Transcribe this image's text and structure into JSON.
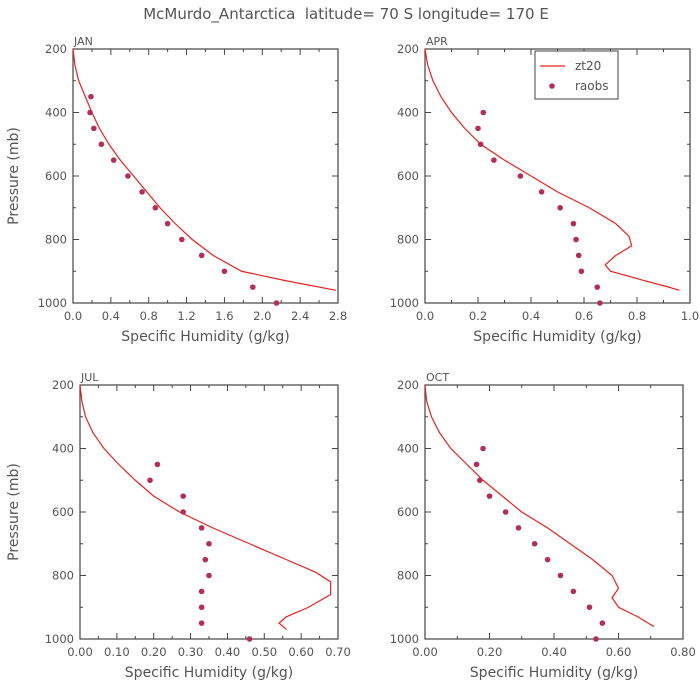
{
  "page": {
    "title": "McMurdo_Antarctica  latitude= 70 S longitude= 170 E"
  },
  "colors": {
    "model_line": "#e8231f",
    "obs_points": "#b0305a",
    "axis": "#444444",
    "text": "#555555"
  },
  "legend": {
    "placement": "top-right of APR panel",
    "entries": [
      "zt20",
      "raobs"
    ]
  },
  "chart_data": [
    {
      "type": "line",
      "panel": "JAN",
      "xlabel": "Specific Humidity (g/kg)",
      "ylabel": "Pressure (mb)",
      "xlim": [
        0,
        2.8
      ],
      "ylim": [
        1000,
        200
      ],
      "xticks": [
        "0.0",
        "0.4",
        "0.8",
        "1.2",
        "1.6",
        "2.0",
        "2.4",
        "2.8"
      ],
      "yticks": [
        "200",
        "400",
        "600",
        "800",
        "1000"
      ],
      "series": [
        {
          "name": "zt20",
          "kind": "line",
          "points": [
            [
              0.0,
              200
            ],
            [
              0.02,
              250
            ],
            [
              0.06,
              300
            ],
            [
              0.13,
              350
            ],
            [
              0.2,
              400
            ],
            [
              0.28,
              450
            ],
            [
              0.38,
              500
            ],
            [
              0.5,
              550
            ],
            [
              0.64,
              600
            ],
            [
              0.78,
              650
            ],
            [
              0.92,
              700
            ],
            [
              1.08,
              750
            ],
            [
              1.26,
              800
            ],
            [
              1.48,
              850
            ],
            [
              1.78,
              900
            ],
            [
              2.25,
              930
            ],
            [
              2.78,
              960
            ]
          ]
        },
        {
          "name": "raobs",
          "kind": "scatter",
          "points": [
            [
              0.19,
              350
            ],
            [
              0.18,
              400
            ],
            [
              0.22,
              450
            ],
            [
              0.3,
              500
            ],
            [
              0.43,
              550
            ],
            [
              0.58,
              600
            ],
            [
              0.73,
              650
            ],
            [
              0.87,
              700
            ],
            [
              1.0,
              750
            ],
            [
              1.15,
              800
            ],
            [
              1.36,
              850
            ],
            [
              1.6,
              900
            ],
            [
              1.9,
              950
            ],
            [
              2.15,
              1000
            ]
          ]
        }
      ]
    },
    {
      "type": "line",
      "panel": "APR",
      "xlabel": "Specific Humidity (g/kg)",
      "ylabel": "",
      "xlim": [
        0,
        1.0
      ],
      "ylim": [
        1000,
        200
      ],
      "xticks": [
        "0.0",
        "0.2",
        "0.4",
        "0.6",
        "0.8",
        "1.0"
      ],
      "yticks": [
        "200",
        "400",
        "600",
        "800",
        "1000"
      ],
      "series": [
        {
          "name": "zt20",
          "kind": "line",
          "points": [
            [
              0.0,
              200
            ],
            [
              0.01,
              250
            ],
            [
              0.03,
              300
            ],
            [
              0.06,
              350
            ],
            [
              0.1,
              400
            ],
            [
              0.15,
              450
            ],
            [
              0.21,
              500
            ],
            [
              0.3,
              550
            ],
            [
              0.4,
              600
            ],
            [
              0.5,
              650
            ],
            [
              0.62,
              700
            ],
            [
              0.72,
              750
            ],
            [
              0.77,
              790
            ],
            [
              0.78,
              820
            ],
            [
              0.72,
              850
            ],
            [
              0.68,
              880
            ],
            [
              0.7,
              900
            ],
            [
              0.83,
              930
            ],
            [
              0.92,
              950
            ],
            [
              0.96,
              960
            ]
          ]
        },
        {
          "name": "raobs",
          "kind": "scatter",
          "points": [
            [
              0.22,
              400
            ],
            [
              0.2,
              450
            ],
            [
              0.21,
              500
            ],
            [
              0.26,
              550
            ],
            [
              0.36,
              600
            ],
            [
              0.44,
              650
            ],
            [
              0.51,
              700
            ],
            [
              0.56,
              750
            ],
            [
              0.57,
              800
            ],
            [
              0.58,
              850
            ],
            [
              0.59,
              900
            ],
            [
              0.65,
              950
            ],
            [
              0.66,
              1000
            ]
          ]
        }
      ]
    },
    {
      "type": "line",
      "panel": "JUL",
      "xlabel": "Specific Humidity (g/kg)",
      "ylabel": "Pressure (mb)",
      "xlim": [
        0,
        0.7
      ],
      "ylim": [
        1000,
        200
      ],
      "xticks": [
        "0.00",
        "0.10",
        "0.20",
        "0.30",
        "0.40",
        "0.50",
        "0.60",
        "0.70"
      ],
      "yticks": [
        "200",
        "400",
        "600",
        "800",
        "1000"
      ],
      "series": [
        {
          "name": "zt20",
          "kind": "line",
          "points": [
            [
              0.0,
              200
            ],
            [
              0.005,
              250
            ],
            [
              0.015,
              300
            ],
            [
              0.035,
              350
            ],
            [
              0.065,
              400
            ],
            [
              0.105,
              450
            ],
            [
              0.15,
              500
            ],
            [
              0.2,
              550
            ],
            [
              0.27,
              600
            ],
            [
              0.36,
              650
            ],
            [
              0.46,
              700
            ],
            [
              0.56,
              750
            ],
            [
              0.64,
              790
            ],
            [
              0.68,
              820
            ],
            [
              0.68,
              860
            ],
            [
              0.62,
              900
            ],
            [
              0.56,
              930
            ],
            [
              0.54,
              950
            ],
            [
              0.56,
              970
            ]
          ]
        },
        {
          "name": "raobs",
          "kind": "scatter",
          "points": [
            [
              0.21,
              450
            ],
            [
              0.19,
              500
            ],
            [
              0.28,
              550
            ],
            [
              0.28,
              600
            ],
            [
              0.33,
              650
            ],
            [
              0.35,
              700
            ],
            [
              0.34,
              750
            ],
            [
              0.35,
              800
            ],
            [
              0.33,
              850
            ],
            [
              0.33,
              900
            ],
            [
              0.33,
              950
            ],
            [
              0.46,
              1000
            ]
          ]
        }
      ]
    },
    {
      "type": "line",
      "panel": "OCT",
      "xlabel": "Specific Humidity (g/kg)",
      "ylabel": "",
      "xlim": [
        0,
        0.8
      ],
      "ylim": [
        1000,
        200
      ],
      "xticks": [
        "0.00",
        "0.20",
        "0.40",
        "0.60",
        "0.80"
      ],
      "yticks": [
        "200",
        "400",
        "600",
        "800",
        "1000"
      ],
      "series": [
        {
          "name": "zt20",
          "kind": "line",
          "points": [
            [
              0.0,
              200
            ],
            [
              0.005,
              250
            ],
            [
              0.02,
              300
            ],
            [
              0.045,
              350
            ],
            [
              0.08,
              400
            ],
            [
              0.13,
              450
            ],
            [
              0.18,
              500
            ],
            [
              0.24,
              550
            ],
            [
              0.3,
              600
            ],
            [
              0.38,
              650
            ],
            [
              0.45,
              700
            ],
            [
              0.52,
              750
            ],
            [
              0.58,
              800
            ],
            [
              0.6,
              840
            ],
            [
              0.58,
              870
            ],
            [
              0.6,
              900
            ],
            [
              0.66,
              930
            ],
            [
              0.7,
              955
            ],
            [
              0.71,
              960
            ]
          ]
        },
        {
          "name": "raobs",
          "kind": "scatter",
          "points": [
            [
              0.18,
              400
            ],
            [
              0.16,
              450
            ],
            [
              0.17,
              500
            ],
            [
              0.2,
              550
            ],
            [
              0.25,
              600
            ],
            [
              0.29,
              650
            ],
            [
              0.34,
              700
            ],
            [
              0.38,
              750
            ],
            [
              0.42,
              800
            ],
            [
              0.46,
              850
            ],
            [
              0.51,
              900
            ],
            [
              0.55,
              950
            ],
            [
              0.53,
              1000
            ]
          ]
        }
      ]
    }
  ]
}
